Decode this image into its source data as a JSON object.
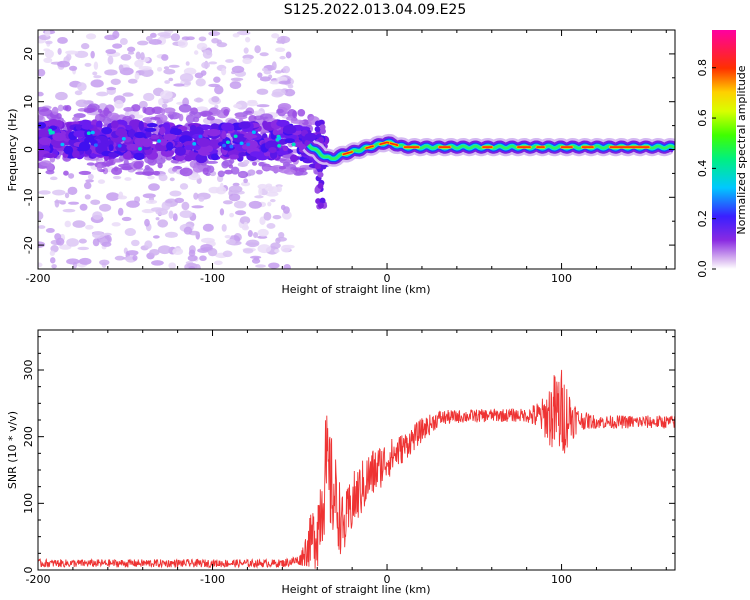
{
  "title": "S125.2022.013.04.09.E25",
  "colors": {
    "snr_line": "#ee3333",
    "axis": "#000000"
  },
  "chart_data": [
    {
      "type": "heatmap",
      "xlabel": "Height of straight line (km)",
      "ylabel": "Frequency (Hz)",
      "xlim": [
        -200,
        165
      ],
      "ylim": [
        -25,
        25
      ],
      "xticks": [
        -200,
        -100,
        0,
        100
      ],
      "yticks": [
        -20,
        -10,
        0,
        10,
        20
      ],
      "colorbar": {
        "label": "Normalized spectral amplitude",
        "range": [
          0,
          0.95
        ],
        "ticks": [
          0.0,
          0.2,
          0.4,
          0.6,
          0.8
        ],
        "tick_labels": [
          "0.0",
          "0.2",
          "0.4",
          "0.6",
          "0.8"
        ],
        "colormap": "rainbow (white-violet-blue-cyan-green-yellow-red-magenta)"
      },
      "ridge": {
        "description": "spectral peak frequency vs height",
        "x": [
          -200,
          -150,
          -100,
          -60,
          -45,
          -38,
          -32,
          -25,
          -15,
          0,
          10,
          30,
          60,
          100,
          130,
          165
        ],
        "y": [
          2,
          2,
          1.5,
          2,
          1,
          -1,
          -2,
          -1,
          0,
          1.5,
          0.5,
          0.5,
          0.5,
          0.5,
          0.5,
          0.5
        ]
      },
      "grid": false
    },
    {
      "type": "line",
      "xlabel": "Height of straight line (km)",
      "ylabel": "SNR (10 * v/v)",
      "xlim": [
        -200,
        165
      ],
      "ylim": [
        0,
        360
      ],
      "xticks": [
        -200,
        -100,
        0,
        100
      ],
      "yticks": [
        0,
        100,
        200,
        300
      ],
      "grid": false,
      "series": [
        {
          "envelope_x": [
            -200,
            -150,
            -100,
            -60,
            -50,
            -40,
            -35,
            -30,
            -25,
            -20,
            -10,
            0,
            10,
            20,
            30,
            40,
            60,
            80,
            90,
            95,
            100,
            105,
            110,
            120,
            140,
            165
          ],
          "envelope_y": [
            10,
            10,
            10,
            10,
            15,
            60,
            150,
            110,
            60,
            100,
            140,
            165,
            185,
            210,
            228,
            230,
            232,
            232,
            230,
            235,
            235,
            230,
            225,
            222,
            222,
            222
          ],
          "amplitude": [
            6,
            6,
            6,
            6,
            8,
            60,
            90,
            70,
            45,
            45,
            40,
            30,
            22,
            18,
            12,
            10,
            10,
            10,
            30,
            60,
            70,
            40,
            15,
            10,
            10,
            10
          ]
        }
      ]
    }
  ]
}
